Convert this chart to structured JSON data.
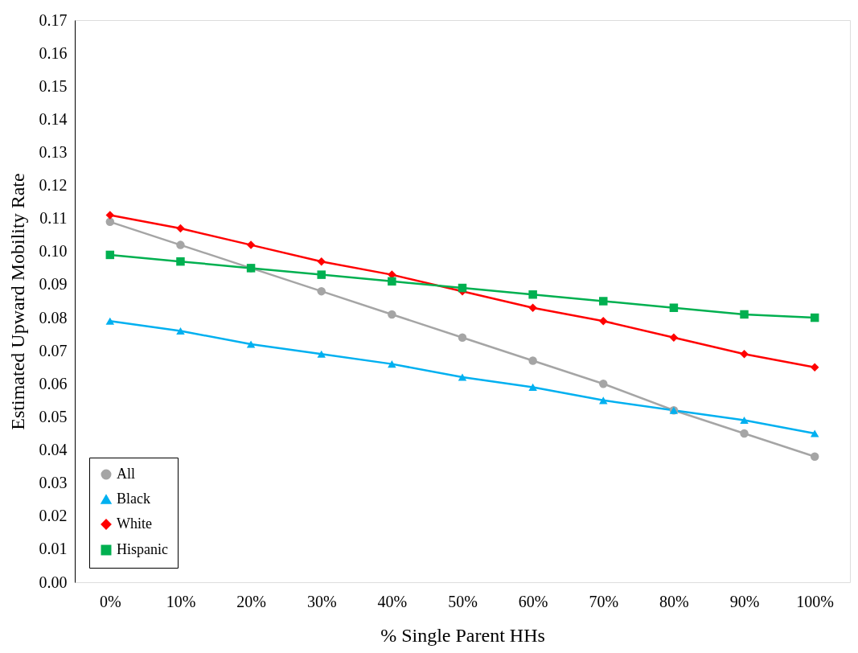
{
  "chart_data": {
    "type": "line",
    "xlabel": "% Single Parent HHs",
    "ylabel": "Estimated Upward Mobility Rate",
    "categories": [
      "0%",
      "10%",
      "20%",
      "30%",
      "40%",
      "50%",
      "60%",
      "70%",
      "80%",
      "90%",
      "100%"
    ],
    "series": [
      {
        "name": "All",
        "color": "#a5a5a5",
        "marker": "circle",
        "values": [
          0.109,
          0.102,
          0.095,
          0.088,
          0.081,
          0.074,
          0.067,
          0.06,
          0.052,
          0.045,
          0.038
        ]
      },
      {
        "name": "Black",
        "color": "#00b0f0",
        "marker": "triangle",
        "values": [
          0.079,
          0.076,
          0.072,
          0.069,
          0.066,
          0.062,
          0.059,
          0.055,
          0.052,
          0.049,
          0.045
        ]
      },
      {
        "name": "White",
        "color": "#ff0000",
        "marker": "diamond",
        "values": [
          0.111,
          0.107,
          0.102,
          0.097,
          0.093,
          0.088,
          0.083,
          0.079,
          0.074,
          0.069,
          0.065
        ]
      },
      {
        "name": "Hispanic",
        "color": "#00b050",
        "marker": "square",
        "values": [
          0.099,
          0.097,
          0.095,
          0.093,
          0.091,
          0.089,
          0.087,
          0.085,
          0.083,
          0.081,
          0.08
        ]
      }
    ],
    "ylim": [
      0,
      0.17
    ],
    "yticks": [
      {
        "value": 0,
        "label": "0.00"
      },
      {
        "value": 0.01,
        "label": "0.01"
      },
      {
        "value": 0.02,
        "label": "0.02"
      },
      {
        "value": 0.03,
        "label": "0.03"
      },
      {
        "value": 0.04,
        "label": "0.04"
      },
      {
        "value": 0.05,
        "label": "0.05"
      },
      {
        "value": 0.06,
        "label": "0.06"
      },
      {
        "value": 0.07,
        "label": "0.07"
      },
      {
        "value": 0.08,
        "label": "0.08"
      },
      {
        "value": 0.09,
        "label": "0.09"
      },
      {
        "value": 0.1,
        "label": "0.10"
      },
      {
        "value": 0.11,
        "label": "0.11"
      },
      {
        "value": 0.12,
        "label": "0.12"
      },
      {
        "value": 0.13,
        "label": "0.13"
      },
      {
        "value": 0.14,
        "label": "0.14"
      },
      {
        "value": 0.15,
        "label": "0.15"
      },
      {
        "value": 0.16,
        "label": "0.16"
      },
      {
        "value": 0.17,
        "label": "0.17"
      }
    ],
    "grid": false,
    "legend": "bottom left"
  }
}
